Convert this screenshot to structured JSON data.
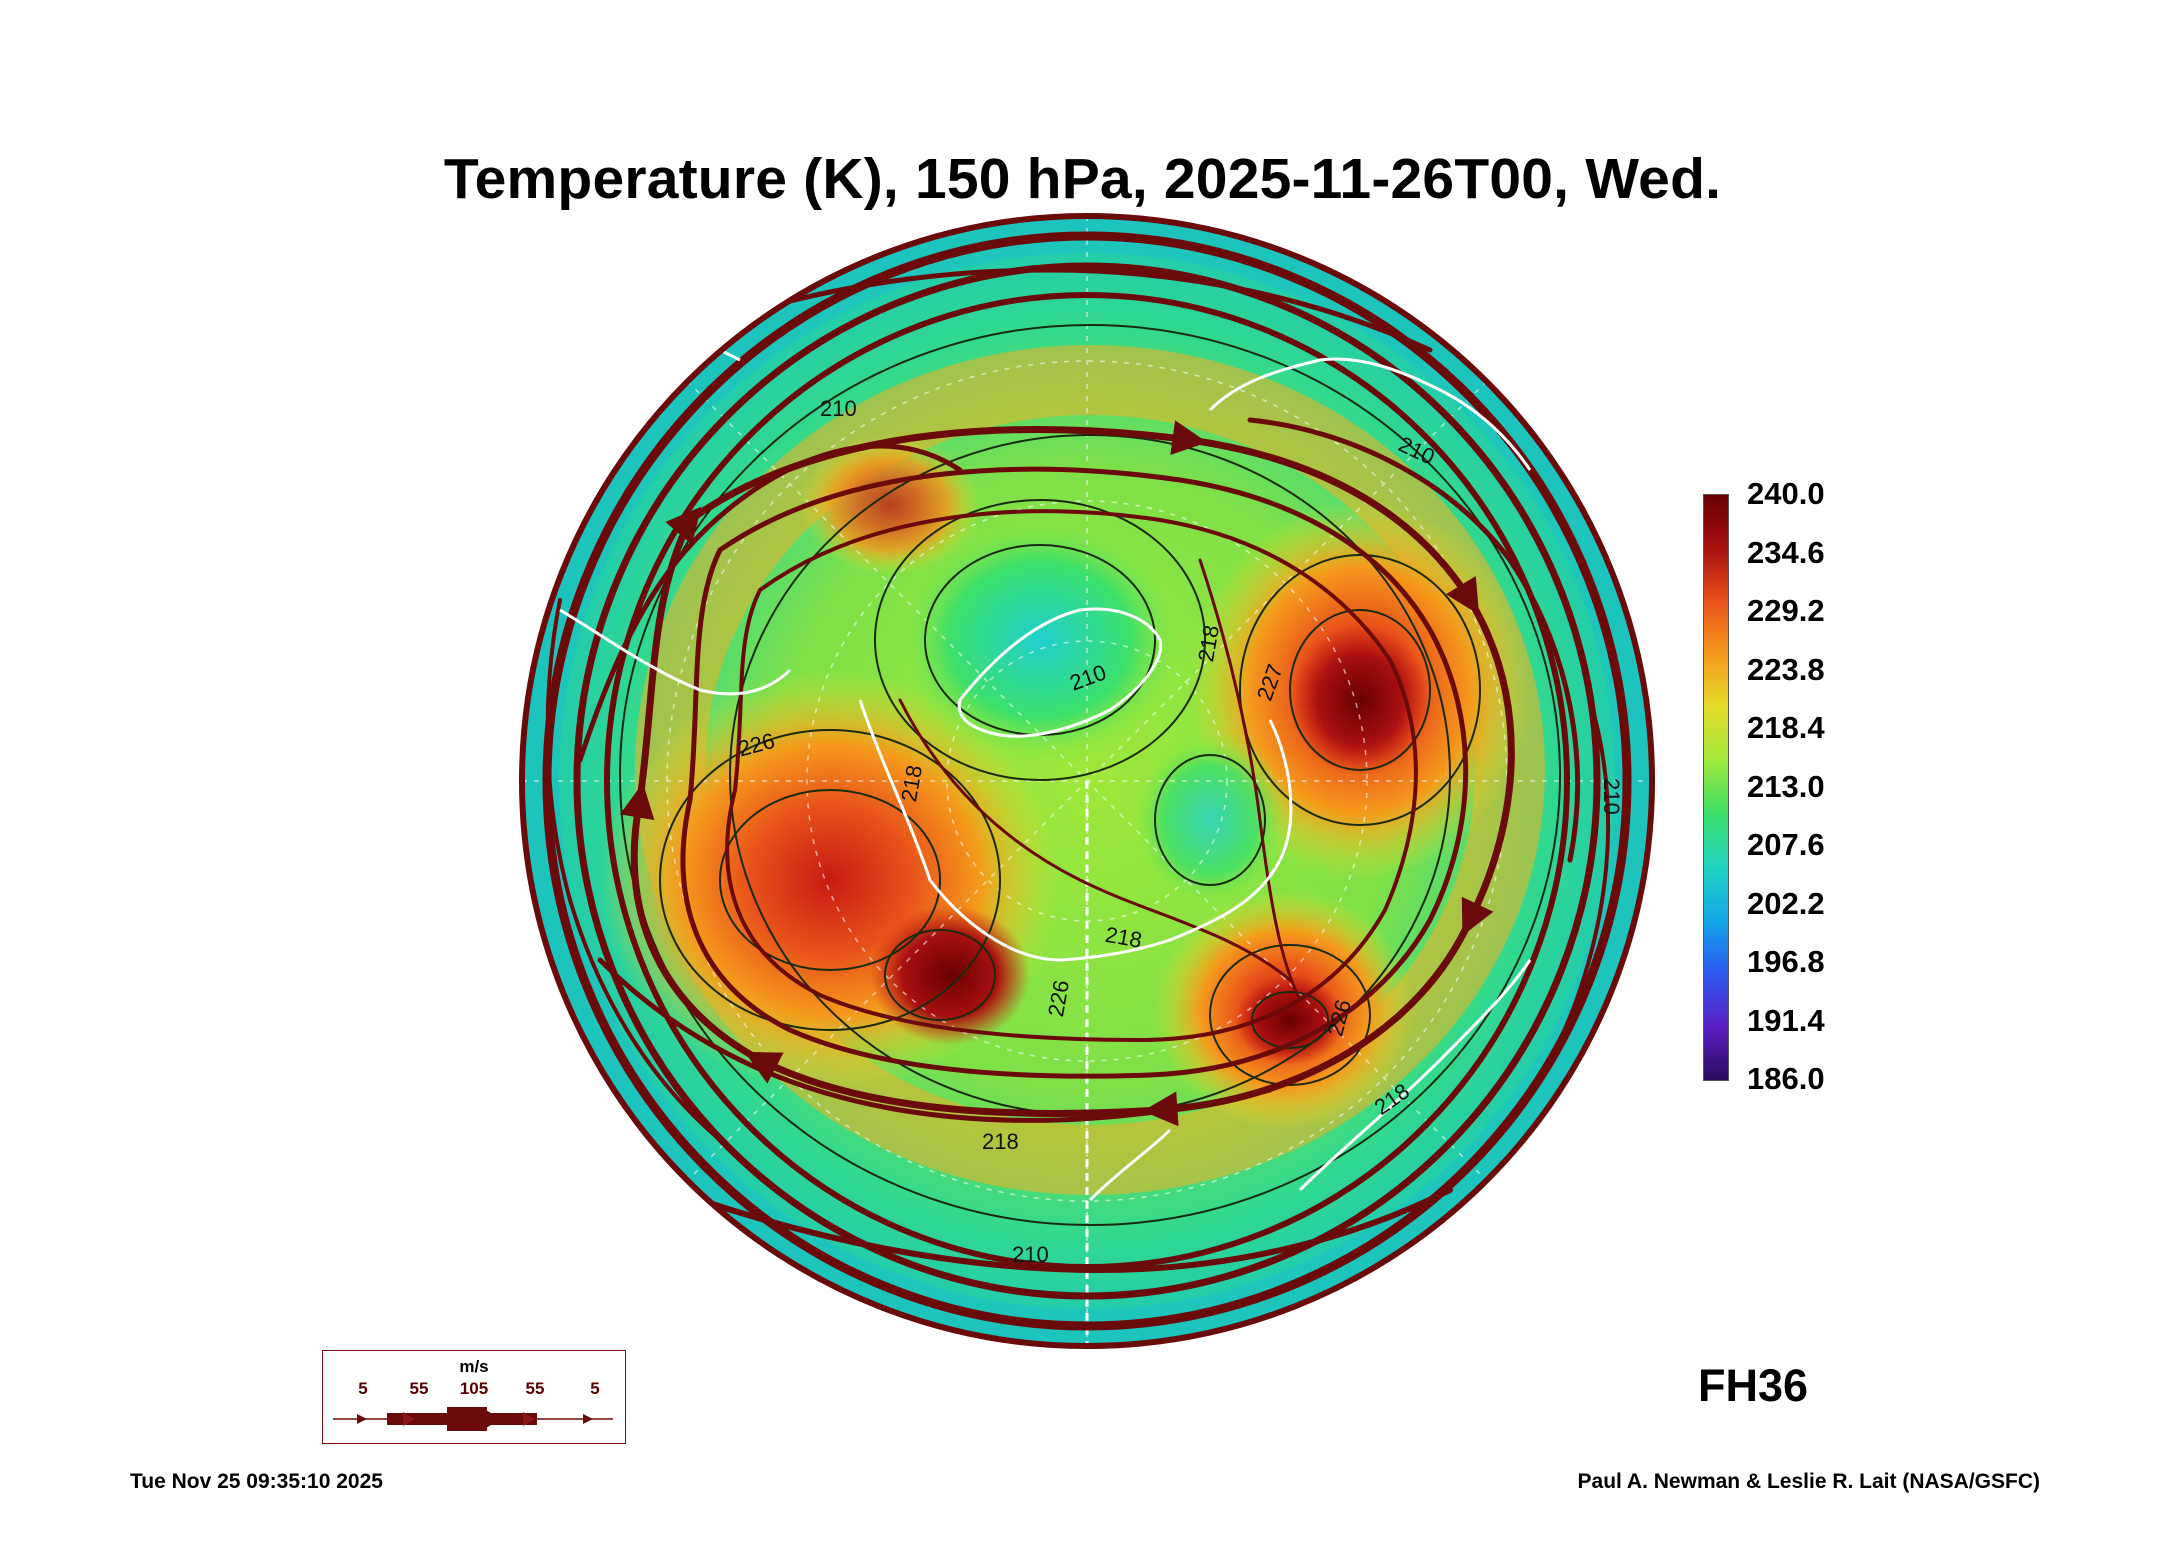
{
  "title": "Temperature (K), 150 hPa, 2025-11-26T00, Wed.",
  "forecast_hour": "FH36",
  "timestamp": "Tue Nov 25 09:35:10 2025",
  "credit": "Paul A. Newman & Leslie R. Lait (NASA/GSFC)",
  "colorbar": {
    "min": 186.0,
    "max": 240.0,
    "labels": [
      "240.0",
      "234.6",
      "229.2",
      "223.8",
      "218.4",
      "213.0",
      "207.6",
      "202.2",
      "196.8",
      "191.4",
      "186.0"
    ],
    "colors": [
      "#2a0a5e",
      "#5b1fc4",
      "#2b59f0",
      "#12a7e8",
      "#1fd2c2",
      "#3ce06a",
      "#9ee83a",
      "#e6dc2a",
      "#f59a1c",
      "#e8521a",
      "#a81010",
      "#6a0000"
    ]
  },
  "wind_key": {
    "unit": "m/s",
    "speeds": [
      "5",
      "55",
      "105",
      "55",
      "5"
    ]
  },
  "contour_labels": [
    {
      "text": "210"
    },
    {
      "text": "210"
    },
    {
      "text": "210"
    },
    {
      "text": "210"
    },
    {
      "text": "210"
    },
    {
      "text": "218"
    },
    {
      "text": "218"
    },
    {
      "text": "218"
    },
    {
      "text": "218"
    },
    {
      "text": "226"
    },
    {
      "text": "226"
    },
    {
      "text": "226"
    },
    {
      "text": "227"
    },
    {
      "text": "218"
    }
  ],
  "colors": {
    "streamline": "#6b0a0a",
    "contour": "#1a2a10",
    "coastline": "#ffffff"
  }
}
